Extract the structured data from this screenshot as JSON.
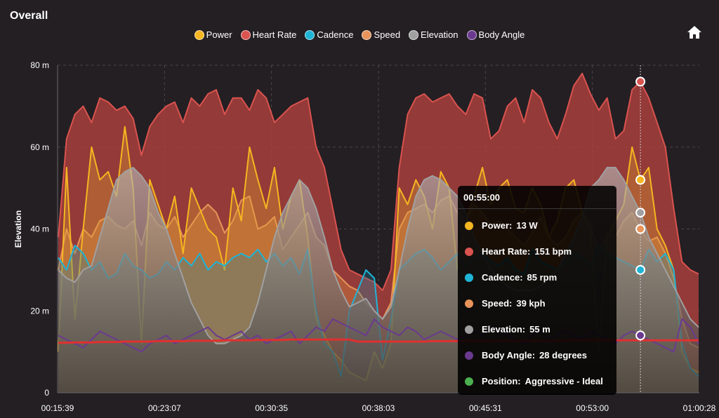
{
  "title": "Overall",
  "icons": {
    "home": "home-icon"
  },
  "legend": [
    {
      "label": "Power",
      "color": "#f5b621"
    },
    {
      "label": "Heart Rate",
      "color": "#d9534f"
    },
    {
      "label": "Cadence",
      "color": "#1fb4d6"
    },
    {
      "label": "Speed",
      "color": "#e8945a"
    },
    {
      "label": "Elevation",
      "color": "#a0a0a0"
    },
    {
      "label": "Body Angle",
      "color": "#6b3a8f"
    }
  ],
  "tooltip": {
    "time": "00:55:00",
    "rows": [
      {
        "label": "Power:",
        "value": "13 W",
        "color": "#f5b621"
      },
      {
        "label": "Heart Rate:",
        "value": "151 bpm",
        "color": "#d9534f"
      },
      {
        "label": "Cadence:",
        "value": "85 rpm",
        "color": "#1fb4d6"
      },
      {
        "label": "Speed:",
        "value": "39 kph",
        "color": "#e8945a"
      },
      {
        "label": "Elevation:",
        "value": "55 m",
        "color": "#a0a0a0"
      },
      {
        "label": "Body Angle:",
        "value": "28 degrees",
        "color": "#6b3a8f"
      },
      {
        "label": "Position:",
        "value": "Aggressive - Ideal",
        "color": "#4caf50"
      }
    ]
  },
  "chart_data": {
    "type": "area",
    "ylabel": "Elevation",
    "ylim": [
      0,
      80
    ],
    "y_ticks": [
      "0",
      "20 m",
      "40 m",
      "60 m",
      "80 m"
    ],
    "x_ticks": [
      "00:15:39",
      "00:23:07",
      "00:30:35",
      "00:38:03",
      "00:45:31",
      "00:53:00",
      "01:00:28"
    ],
    "grid": true,
    "legend_position": "top",
    "series": [
      {
        "name": "Heart Rate",
        "color": "#d9534f",
        "values": [
          38,
          62,
          68,
          70,
          66,
          72,
          71,
          69,
          70,
          67,
          58,
          65,
          68,
          70,
          71,
          66,
          72,
          70,
          73,
          74,
          68,
          72,
          72,
          69,
          74,
          72,
          66,
          68,
          70,
          71,
          72,
          60,
          55,
          45,
          35,
          30,
          29,
          28,
          27,
          25,
          30,
          55,
          68,
          72,
          73,
          71,
          72,
          73,
          70,
          68,
          73,
          72,
          62,
          64,
          70,
          72,
          66,
          74,
          72,
          66,
          62,
          68,
          75,
          78,
          73,
          69,
          72,
          62,
          64,
          74,
          76,
          72,
          66,
          60,
          45,
          32,
          30,
          29
        ]
      },
      {
        "name": "Speed",
        "color": "#e8945a",
        "values": [
          30,
          40,
          34,
          40,
          38,
          42,
          43,
          41,
          40,
          42,
          36,
          44,
          41,
          40,
          43,
          38,
          41,
          44,
          46,
          44,
          39,
          42,
          47,
          48,
          40,
          41,
          43,
          35,
          38,
          41,
          44,
          38,
          36,
          30,
          28,
          26,
          25,
          22,
          20,
          18,
          22,
          40,
          44,
          45,
          46,
          44,
          47,
          48,
          44,
          42,
          46,
          44,
          41,
          42,
          40,
          38,
          36,
          39,
          43,
          38,
          36,
          38,
          42,
          44,
          41,
          34,
          39,
          38,
          42,
          44,
          40,
          37,
          38,
          34,
          28,
          18,
          12,
          11
        ]
      },
      {
        "name": "Power",
        "color": "#f5b621",
        "values": [
          10,
          55,
          18,
          40,
          60,
          52,
          54,
          48,
          65,
          50,
          12,
          52,
          46,
          40,
          48,
          34,
          50,
          45,
          40,
          38,
          30,
          50,
          42,
          60,
          52,
          45,
          55,
          40,
          48,
          52,
          38,
          18,
          14,
          10,
          8,
          5,
          4,
          3,
          10,
          6,
          12,
          50,
          46,
          52,
          48,
          40,
          54,
          50,
          30,
          42,
          48,
          55,
          46,
          50,
          52,
          45,
          44,
          50,
          46,
          38,
          42,
          50,
          52,
          44,
          40,
          10,
          38,
          42,
          46,
          60,
          52,
          55,
          40,
          36,
          30,
          10,
          6,
          5
        ]
      },
      {
        "name": "Cadence",
        "color": "#1fb4d6",
        "values": [
          33,
          30,
          36,
          34,
          30,
          32,
          28,
          29,
          34,
          31,
          30,
          28,
          29,
          32,
          30,
          33,
          31,
          34,
          30,
          32,
          31,
          33,
          34,
          33,
          35,
          32,
          34,
          31,
          33,
          29,
          35,
          20,
          12,
          10,
          4,
          20,
          25,
          30,
          28,
          8,
          18,
          30,
          32,
          34,
          35,
          33,
          30,
          32,
          34,
          31,
          33,
          34,
          32,
          31,
          33,
          30,
          29,
          35,
          32,
          31,
          30,
          32,
          34,
          33,
          31,
          36,
          34,
          33,
          32,
          31,
          30,
          35,
          32,
          34,
          30,
          12,
          6,
          4
        ]
      },
      {
        "name": "Elevation",
        "color": "#a0a0a0",
        "values": [
          30,
          28,
          27,
          30,
          31,
          38,
          45,
          52,
          54,
          55,
          53,
          50,
          44,
          40,
          34,
          28,
          22,
          18,
          14,
          12,
          12,
          13,
          14,
          16,
          22,
          30,
          38,
          44,
          48,
          52,
          50,
          45,
          38,
          30,
          25,
          21,
          22,
          23,
          20,
          18,
          21,
          30,
          40,
          48,
          52,
          53,
          52,
          50,
          48,
          44,
          38,
          34,
          30,
          28,
          26,
          25,
          25,
          25,
          26,
          28,
          30,
          34,
          38,
          43,
          50,
          52,
          55,
          55,
          52,
          48,
          44,
          38,
          34,
          30,
          26,
          22,
          18,
          16
        ]
      },
      {
        "name": "Body Angle",
        "color": "#6b3a8f",
        "values": [
          14,
          13,
          12,
          11,
          13,
          15,
          14,
          13,
          12,
          11,
          10,
          12,
          13,
          14,
          12,
          13,
          14,
          15,
          16,
          14,
          13,
          14,
          15,
          13,
          14,
          12,
          13,
          14,
          15,
          12,
          14,
          16,
          15,
          18,
          17,
          16,
          15,
          14,
          18,
          16,
          15,
          14,
          16,
          15,
          13,
          14,
          15,
          14,
          13,
          14,
          15,
          14,
          16,
          15,
          14,
          13,
          12,
          14,
          15,
          13,
          14,
          15,
          14,
          13,
          15,
          14,
          13,
          12,
          14,
          15,
          14,
          13,
          12,
          11,
          10,
          18,
          16,
          12
        ]
      },
      {
        "name": "Position",
        "color": "#e03030",
        "values": [
          12.2,
          12.2,
          12.3,
          12.3,
          12.3,
          12.4,
          12.4,
          12.4,
          12.5,
          12.5,
          12.5,
          12.5,
          12.6,
          12.6,
          12.6,
          12.6,
          12.7,
          12.7,
          12.7,
          12.7,
          12.8,
          12.8,
          12.8,
          12.8,
          12.9,
          12.9,
          12.9,
          12.9,
          13.0,
          13.0,
          13.0,
          13.0,
          13.0,
          13.0,
          13.0,
          13.0,
          12.5,
          12.5,
          12.5,
          12.5,
          12.5,
          12.5,
          12.5,
          12.5,
          12.5,
          12.6,
          12.6,
          12.6,
          12.6,
          12.6,
          12.6,
          12.6,
          12.6,
          12.7,
          12.7,
          12.7,
          12.7,
          12.7,
          12.7,
          12.7,
          12.7,
          12.8,
          12.8,
          12.8,
          12.8,
          12.8,
          12.8,
          12.8,
          12.8,
          12.8,
          12.8,
          12.8,
          12.8,
          12.8,
          12.8,
          12.8,
          12.8,
          12.8
        ]
      }
    ]
  }
}
